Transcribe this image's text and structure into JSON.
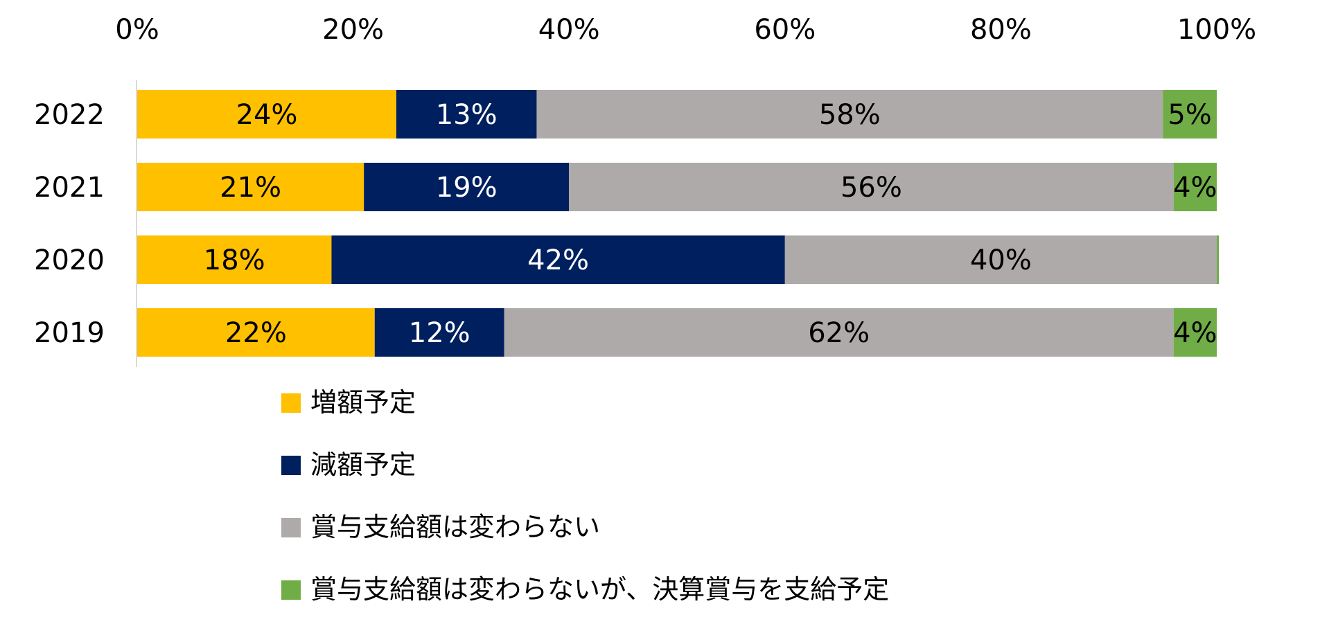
{
  "chart_data": {
    "type": "bar",
    "orientation": "horizontal",
    "stacked": "percent",
    "categories": [
      "2022",
      "2021",
      "2020",
      "2019"
    ],
    "series": [
      {
        "name": "増額予定",
        "color": "#FFC000",
        "values": [
          24,
          21,
          18,
          22
        ],
        "labels": [
          "24%",
          "21%",
          "18%",
          "22%"
        ],
        "label_color": "#000000"
      },
      {
        "name": "減額予定",
        "color": "#001F5F",
        "values": [
          13,
          19,
          42,
          12
        ],
        "labels": [
          "13%",
          "19%",
          "42%",
          "12%"
        ],
        "label_color": "#FFFFFF"
      },
      {
        "name": "賞与支給額は変わらない",
        "color": "#AEAAAA",
        "values": [
          58,
          56,
          40,
          62
        ],
        "labels": [
          "58%",
          "56%",
          "40%",
          "62%"
        ],
        "label_color": "#000000"
      },
      {
        "name": "賞与支給額は変わらないが、決算賞与を支給予定",
        "color": "#70AD47",
        "values": [
          5,
          4,
          0.2,
          4
        ],
        "labels": [
          "5%",
          "4%",
          "",
          "4%"
        ],
        "label_color": "#000000"
      }
    ],
    "x_axis": {
      "position": "top",
      "range": [
        0,
        100
      ],
      "ticks": [
        0,
        20,
        40,
        60,
        80,
        100
      ],
      "tick_labels": [
        "0%",
        "20%",
        "40%",
        "60%",
        "80%",
        "100%"
      ]
    },
    "grid": false,
    "legend": "bottom",
    "title": "",
    "xlabel": "",
    "ylabel": ""
  }
}
